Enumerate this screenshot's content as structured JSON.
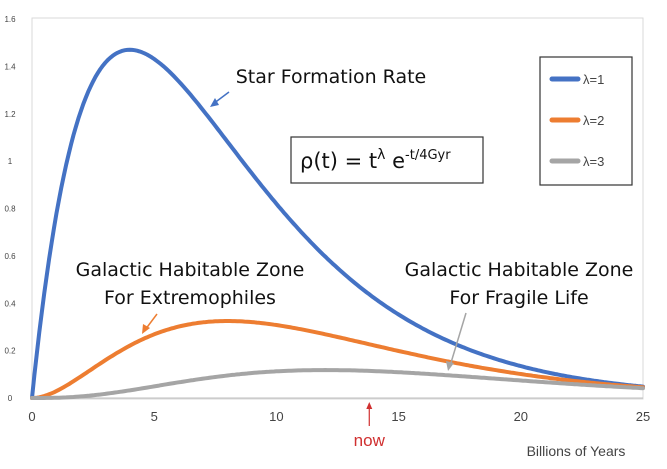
{
  "chart_data": {
    "type": "line",
    "xlabel": "Billions of Years",
    "xlim": [
      0,
      25
    ],
    "ylim": [
      0,
      1.6
    ],
    "x_ticks": [
      "0",
      "5",
      "10",
      "15",
      "20",
      "25"
    ],
    "y_ticks": [
      "0",
      "0.2",
      "0.4",
      "0.6",
      "0.8",
      "1",
      "1.2",
      "1.4",
      "1.6"
    ],
    "formula": {
      "prefix": "ρ(t) = t",
      "exponent": "λ",
      "middle": " e",
      "exp2": "-t/4Gyr"
    },
    "series": [
      {
        "name": "λ=1",
        "color": "#4472C4"
      },
      {
        "name": "λ=2",
        "color": "#ED7D31"
      },
      {
        "name": "λ=3",
        "color": "#A5A5A5"
      }
    ],
    "annotations": {
      "star_formation": "Star Formation Rate",
      "ghz_extremophiles": [
        "Galactic Habitable Zone",
        "For Extremophiles"
      ],
      "ghz_fragile": [
        "Galactic Habitable Zone",
        "For Fragile Life"
      ],
      "now_label": "now",
      "now_x": 13.8
    },
    "legend_position": "top-right",
    "grid": false
  }
}
